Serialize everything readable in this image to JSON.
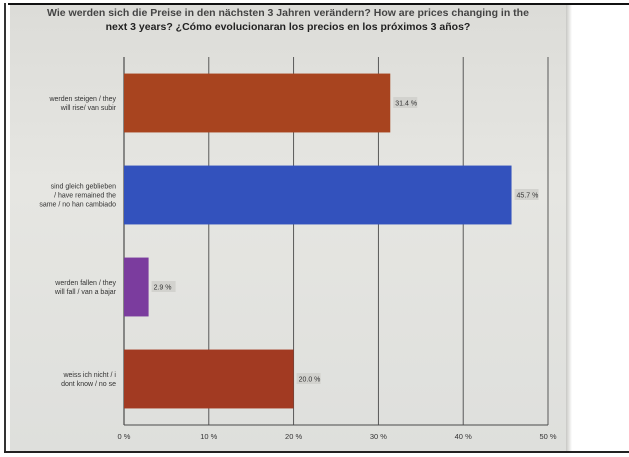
{
  "slide": {
    "title_line_1": "Wie werden sich die Preise in den nächsten 3 Jahren verändern? How are prices changing in the",
    "title_line_2": "next 3 years? ¿Cómo evolucionaran los precios en los próximos 3 años?"
  },
  "chart_data": {
    "type": "bar",
    "orientation": "horizontal",
    "title": "Wie werden sich die Preise in den nächsten 3 Jahren verändern? How are prices changing in the next 3 years? ¿Cómo evolucionaran los precios en los próximos 3 años?",
    "categories": [
      [
        "werden steigen / they",
        "will rise/ van subir"
      ],
      [
        "sind gleich geblieben",
        "/ have remained the",
        "same / no han cambiado"
      ],
      [
        "werden fallen / they",
        "will fall / van a bajar"
      ],
      [
        "weiss ich nicht / i",
        "dont know / no se"
      ]
    ],
    "values": [
      31.4,
      45.7,
      2.9,
      20.0
    ],
    "value_labels": [
      "31.4 %",
      "45.7 %",
      "2.9 %",
      "20.0 %"
    ],
    "bar_colors": [
      "#a8441f",
      "#3352bd",
      "#7b3c9e",
      "#a23a22"
    ],
    "xlim": [
      0,
      50
    ],
    "x_ticks": [
      0,
      10,
      20,
      30,
      40,
      50
    ],
    "x_tick_labels": [
      "0 %",
      "10 %",
      "20 %",
      "30 %",
      "40 %",
      "50 %"
    ],
    "grid": true,
    "legend": "none"
  }
}
